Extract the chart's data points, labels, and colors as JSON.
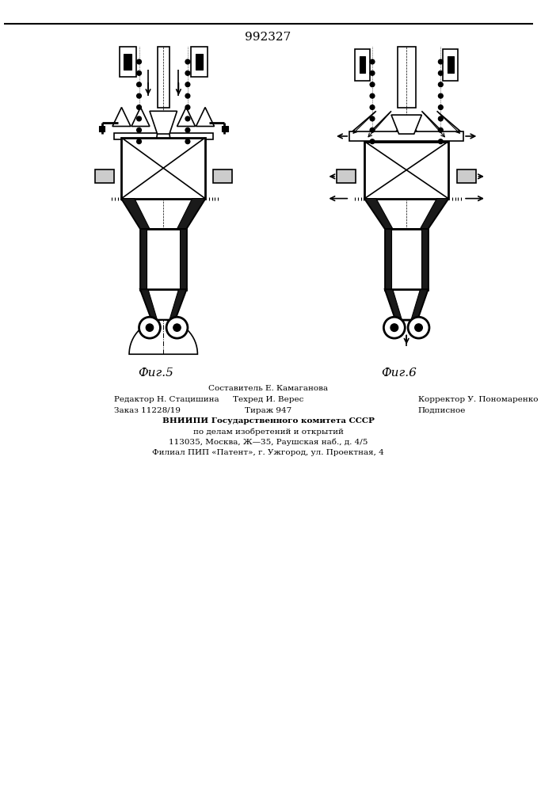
{
  "title": "992327",
  "fig5_label": "Фиг.5",
  "fig6_label": "Фиг.6",
  "bottom_text_line1": "Составитель Е. Камаганова",
  "bottom_text_line2_left": "Редактор Н. Стацишина",
  "bottom_text_line2_mid": "Техред И. Верес",
  "bottom_text_line2_right": "Корректор У. Пономаренко",
  "bottom_text_line3_left": "Заказ 11228/19",
  "bottom_text_line3_mid": "Тираж 947",
  "bottom_text_line3_right": "Подписное",
  "bottom_text_line4": "ВНИИПИ Государственного комитета СССР",
  "bottom_text_line5": "по делам изобретений и открытий",
  "bottom_text_line6": "113035, Москва, Ж—35, Раушская наб., д. 4/5",
  "bottom_text_line7": "Филиал ПИП «Патент», г. Ужгород, ул. Проектная, 4",
  "bg_color": "#ffffff",
  "line_color": "#000000",
  "dark_fill": "#1a1a1a",
  "gray_fill": "#888888",
  "light_gray": "#cccccc"
}
